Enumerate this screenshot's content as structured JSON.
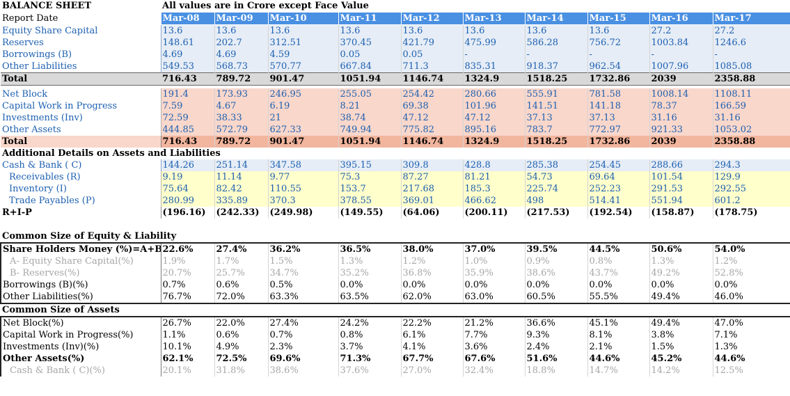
{
  "title": "BALANCE SHEET",
  "note": "All values are in Crore except Face Value",
  "report_date_label": "Report Date",
  "years": [
    "Mar-08",
    "Mar-09",
    "Mar-10",
    "Mar-11",
    "Mar-12",
    "Mar-13",
    "Mar-14",
    "Mar-15",
    "Mar-16",
    "Mar-17"
  ],
  "liabilities": [
    {
      "label": "Equity Share Capital",
      "values": [
        "13.6",
        "13.6",
        "13.6",
        "13.6",
        "13.6",
        "13.6",
        "13.6",
        "13.6",
        "27.2",
        "27.2"
      ]
    },
    {
      "label": "Reserves",
      "values": [
        "148.61",
        "202.7",
        "312.51",
        "370.45",
        "421.79",
        "475.99",
        "586.28",
        "756.72",
        "1003.84",
        "1246.6"
      ]
    },
    {
      "label": "Borrowings (B)",
      "values": [
        "4.69",
        "4.69",
        "4.59",
        "0.05",
        "0.05",
        "-",
        "-",
        "-",
        "-",
        "-"
      ]
    },
    {
      "label": "Other Liabilities",
      "values": [
        "549.53",
        "568.73",
        "570.77",
        "667.84",
        "711.3",
        "835.31",
        "918.37",
        "962.54",
        "1007.96",
        "1085.08"
      ]
    }
  ],
  "liab_total": {
    "label": "Total",
    "values": [
      "716.43",
      "789.72",
      "901.47",
      "1051.94",
      "1146.74",
      "1324.9",
      "1518.25",
      "1732.86",
      "2039",
      "2358.88"
    ]
  },
  "assets": [
    {
      "label": "Net Block",
      "values": [
        "191.4",
        "173.93",
        "246.95",
        "255.05",
        "254.42",
        "280.66",
        "555.91",
        "781.58",
        "1008.14",
        "1108.11"
      ]
    },
    {
      "label": "Capital Work in Progress",
      "values": [
        "7.59",
        "4.67",
        "6.19",
        "8.21",
        "69.38",
        "101.96",
        "141.51",
        "141.18",
        "78.37",
        "166.59"
      ]
    },
    {
      "label": "Investments (Inv)",
      "values": [
        "72.59",
        "38.33",
        "21",
        "38.74",
        "47.12",
        "47.12",
        "37.13",
        "37.13",
        "31.16",
        "31.16"
      ]
    },
    {
      "label": "Other Assets",
      "values": [
        "444.85",
        "572.79",
        "627.33",
        "749.94",
        "775.82",
        "895.16",
        "783.7",
        "772.97",
        "921.33",
        "1053.02"
      ]
    }
  ],
  "asset_total": {
    "label": "Total",
    "values": [
      "716.43",
      "789.72",
      "901.47",
      "1051.94",
      "1146.74",
      "1324.9",
      "1518.25",
      "1732.86",
      "2039",
      "2358.88"
    ]
  },
  "additional_title": "Additional Details on Assets and Liabilities",
  "cash": {
    "label": "Cash & Bank ( C)",
    "values": [
      "144.26",
      "251.14",
      "347.58",
      "395.15",
      "309.8",
      "428.8",
      "285.38",
      "254.45",
      "288.66",
      "294.3"
    ]
  },
  "additional": [
    {
      "label": "Receivables (R)",
      "values": [
        "9.19",
        "11.14",
        "9.77",
        "75.3",
        "87.27",
        "81.21",
        "54.73",
        "69.64",
        "101.54",
        "129.9"
      ]
    },
    {
      "label": "Inventory (I)",
      "values": [
        "75.64",
        "82.42",
        "110.55",
        "153.7",
        "217.68",
        "185.3",
        "225.74",
        "252.23",
        "291.53",
        "292.55"
      ]
    },
    {
      "label": "Trade Payables (P)",
      "values": [
        "280.99",
        "335.89",
        "370.3",
        "378.55",
        "369.01",
        "466.62",
        "498",
        "514.41",
        "551.94",
        "601.2"
      ]
    }
  ],
  "rip": {
    "label": "R+I-P",
    "values": [
      "(196.16)",
      "(242.33)",
      "(249.98)",
      "(149.55)",
      "(64.06)",
      "(200.11)",
      "(217.53)",
      "(192.54)",
      "(158.87)",
      "(178.75)"
    ]
  },
  "common_liab_title": "Common Size of Equity & Liability",
  "common_liab": [
    {
      "label": "Share Holders Money (%)=A+B",
      "values": [
        "22.6%",
        "27.4%",
        "36.2%",
        "36.5%",
        "38.0%",
        "37.0%",
        "39.5%",
        "44.5%",
        "50.6%",
        "54.0%"
      ]
    },
    {
      "label": "A- Equity Share Capital(%)",
      "values": [
        "1.9%",
        "1.7%",
        "1.5%",
        "1.3%",
        "1.2%",
        "1.0%",
        "0.9%",
        "0.8%",
        "1.3%",
        "1.2%"
      ]
    },
    {
      "label": "B- Reserves(%)",
      "values": [
        "20.7%",
        "25.7%",
        "34.7%",
        "35.2%",
        "36.8%",
        "35.9%",
        "38.6%",
        "43.7%",
        "49.2%",
        "52.8%"
      ]
    },
    {
      "label": "Borrowings (B)(%)",
      "values": [
        "0.7%",
        "0.6%",
        "0.5%",
        "0.0%",
        "0.0%",
        "0.0%",
        "0.0%",
        "0.0%",
        "0.0%",
        "0.0%"
      ]
    },
    {
      "label": "Other Liabilities(%)",
      "values": [
        "76.7%",
        "72.0%",
        "63.3%",
        "63.5%",
        "62.0%",
        "63.0%",
        "60.5%",
        "55.5%",
        "49.4%",
        "46.0%"
      ]
    }
  ],
  "common_assets_title": "Common Size of Assets",
  "common_assets": [
    {
      "label": "Net Block(%)",
      "values": [
        "26.7%",
        "22.0%",
        "27.4%",
        "24.2%",
        "22.2%",
        "21.2%",
        "36.6%",
        "45.1%",
        "49.4%",
        "47.0%"
      ]
    },
    {
      "label": "Capital Work in Progress(%)",
      "values": [
        "1.1%",
        "0.6%",
        "0.7%",
        "0.8%",
        "6.1%",
        "7.7%",
        "9.3%",
        "8.1%",
        "3.8%",
        "7.1%"
      ]
    },
    {
      "label": "Investments (Inv)(%)",
      "values": [
        "10.1%",
        "4.9%",
        "2.3%",
        "3.7%",
        "4.1%",
        "3.6%",
        "2.4%",
        "2.1%",
        "1.5%",
        "1.3%"
      ]
    },
    {
      "label": "Other Assets(%)",
      "values": [
        "62.1%",
        "72.5%",
        "69.6%",
        "71.3%",
        "67.7%",
        "67.6%",
        "51.6%",
        "44.6%",
        "45.2%",
        "44.6%"
      ]
    },
    {
      "label": "Cash & Bank ( C)(%)",
      "values": [
        "20.1%",
        "31.8%",
        "38.6%",
        "37.6%",
        "27.0%",
        "32.4%",
        "18.8%",
        "14.7%",
        "14.2%",
        "12.5%"
      ]
    }
  ]
}
